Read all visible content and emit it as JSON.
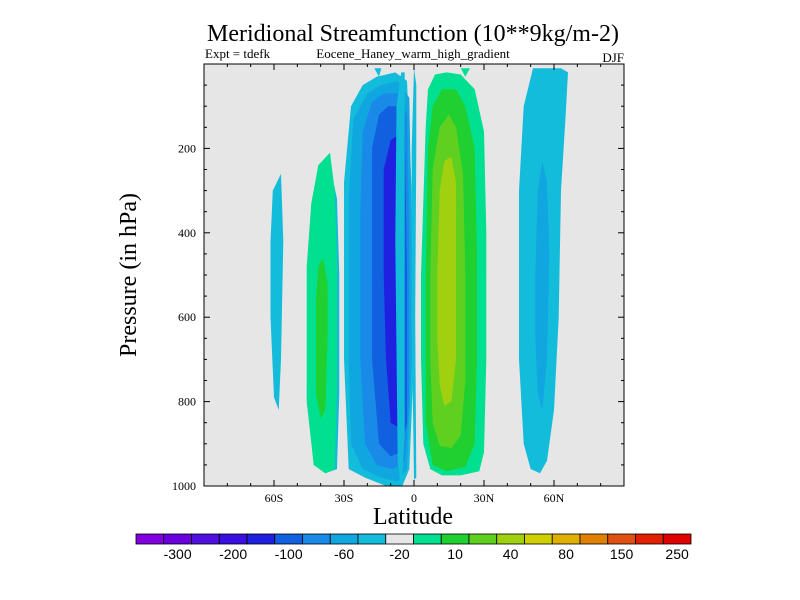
{
  "chart_data": {
    "type": "contour",
    "title": "Meridional Streamfunction (10**9kg/m-2)",
    "left_label": "Expt = tdefk",
    "center_label": "Eocene_Haney_warm_high_gradient",
    "right_label": "DJF",
    "xlabel": "Latitude",
    "ylabel": "Pressure (in hPa)",
    "xlim": [
      -90,
      90
    ],
    "ylim": [
      1000,
      0
    ],
    "x_ticks": [
      {
        "value": -60,
        "label": "60S"
      },
      {
        "value": -30,
        "label": "30S"
      },
      {
        "value": 0,
        "label": "0"
      },
      {
        "value": 30,
        "label": "30N"
      },
      {
        "value": 60,
        "label": "60N"
      }
    ],
    "y_ticks": [
      {
        "value": 200,
        "label": "200"
      },
      {
        "value": 400,
        "label": "400"
      },
      {
        "value": 600,
        "label": "600"
      },
      {
        "value": 800,
        "label": "800"
      },
      {
        "value": 1000,
        "label": "1000"
      }
    ],
    "missing_color": "#e6e6e6",
    "colorbar": {
      "colors": [
        "#8000e0",
        "#6a00e0",
        "#5010e0",
        "#3a10e0",
        "#2020e0",
        "#1060e0",
        "#1a8ae8",
        "#10a6e0",
        "#14bcdc",
        "#e6e6e6",
        "#00e090",
        "#20d030",
        "#60d020",
        "#a0d010",
        "#d0d000",
        "#e0b000",
        "#e08000",
        "#e05010",
        "#e02000",
        "#e00000"
      ],
      "labels": [
        {
          "after_index": 1,
          "text": "-300"
        },
        {
          "after_index": 3,
          "text": "-200"
        },
        {
          "after_index": 5,
          "text": "-100"
        },
        {
          "after_index": 7,
          "text": "-60"
        },
        {
          "after_index": 9,
          "text": "-20"
        },
        {
          "after_index": 11,
          "text": "10"
        },
        {
          "after_index": 13,
          "text": "40"
        },
        {
          "after_index": 15,
          "text": "80"
        },
        {
          "after_index": 17,
          "text": "150"
        },
        {
          "after_index": 19,
          "text": "250"
        }
      ]
    },
    "regions": [
      {
        "color": "#14bcdc",
        "poly": [
          [
            -60.5,
            300
          ],
          [
            -57,
            260
          ],
          [
            -56,
            420
          ],
          [
            -57,
            700
          ],
          [
            -58,
            820
          ],
          [
            -60,
            790
          ],
          [
            -61.5,
            600
          ],
          [
            -61.5,
            420
          ]
        ]
      },
      {
        "color": "#14bcdc",
        "poly": [
          [
            -44,
            420
          ],
          [
            -40,
            330
          ],
          [
            -36,
            240
          ],
          [
            -33,
            320
          ],
          [
            -32,
            500
          ],
          [
            -32,
            780
          ],
          [
            -33,
            960
          ],
          [
            -38,
            970
          ],
          [
            -43,
            950
          ],
          [
            -45,
            750
          ]
        ]
      },
      {
        "color": "#00e090",
        "poly": [
          [
            -46,
            480
          ],
          [
            -44,
            330
          ],
          [
            -41,
            240
          ],
          [
            -36,
            210
          ],
          [
            -34,
            300
          ],
          [
            -33,
            480
          ],
          [
            -33,
            760
          ],
          [
            -34,
            960
          ],
          [
            -38,
            970
          ],
          [
            -43,
            950
          ],
          [
            -46,
            800
          ]
        ]
      },
      {
        "color": "#20d030",
        "poly": [
          [
            -42,
            560
          ],
          [
            -41,
            480
          ],
          [
            -39,
            460
          ],
          [
            -37,
            520
          ],
          [
            -37,
            640
          ],
          [
            -38,
            820
          ],
          [
            -40,
            840
          ],
          [
            -42,
            780
          ]
        ]
      },
      {
        "color": "#14bcdc",
        "poly": [
          [
            -30,
            280
          ],
          [
            -27,
            100
          ],
          [
            -22,
            50
          ],
          [
            -16,
            30
          ],
          [
            -8,
            20
          ],
          [
            -3,
            40
          ],
          [
            -1,
            300
          ],
          [
            0,
            700
          ],
          [
            -2,
            960
          ],
          [
            -5,
            1000
          ],
          [
            -12,
            1000
          ],
          [
            -21,
            980
          ],
          [
            -28,
            960
          ],
          [
            -30,
            700
          ]
        ]
      },
      {
        "color": "#10a6e0",
        "poly": [
          [
            -28,
            320
          ],
          [
            -26,
            130
          ],
          [
            -20,
            70
          ],
          [
            -14,
            50
          ],
          [
            -7,
            40
          ],
          [
            -2,
            80
          ],
          [
            -1,
            400
          ],
          [
            -1,
            700
          ],
          [
            -3,
            960
          ],
          [
            -7,
            990
          ],
          [
            -14,
            980
          ],
          [
            -22,
            960
          ],
          [
            -27,
            900
          ],
          [
            -28,
            700
          ]
        ]
      },
      {
        "color": "#1a8ae8",
        "poly": [
          [
            -23,
            350
          ],
          [
            -22,
            160
          ],
          [
            -18,
            90
          ],
          [
            -13,
            70
          ],
          [
            -7,
            70
          ],
          [
            -3,
            120
          ],
          [
            -2,
            400
          ],
          [
            -2,
            800
          ],
          [
            -4,
            940
          ],
          [
            -9,
            960
          ],
          [
            -16,
            950
          ],
          [
            -21,
            900
          ],
          [
            -23,
            700
          ]
        ]
      },
      {
        "color": "#1060e0",
        "poly": [
          [
            -18,
            420
          ],
          [
            -18,
            200
          ],
          [
            -15,
            120
          ],
          [
            -11,
            100
          ],
          [
            -7,
            100
          ],
          [
            -4,
            140
          ],
          [
            -3,
            500
          ],
          [
            -3,
            850
          ],
          [
            -6,
            920
          ],
          [
            -10,
            930
          ],
          [
            -15,
            900
          ],
          [
            -18,
            700
          ]
        ]
      },
      {
        "color": "#2020e0",
        "poly": [
          [
            -13,
            500
          ],
          [
            -13,
            250
          ],
          [
            -10,
            180
          ],
          [
            -7,
            170
          ],
          [
            -5,
            200
          ],
          [
            -4,
            500
          ],
          [
            -4,
            800
          ],
          [
            -7,
            860
          ],
          [
            -10,
            850
          ],
          [
            -12,
            700
          ]
        ]
      },
      {
        "color": "#3a10e0",
        "poly": [
          [
            -7,
            450
          ],
          [
            -7,
            340
          ],
          [
            -6,
            320
          ],
          [
            -5,
            350
          ],
          [
            -5,
            700
          ],
          [
            -6,
            790
          ],
          [
            -7,
            780
          ],
          [
            -7.5,
            650
          ]
        ]
      },
      {
        "color": "#00e090",
        "poly": [
          [
            3,
            500
          ],
          [
            5,
            150
          ],
          [
            6,
            60
          ],
          [
            9,
            25
          ],
          [
            14,
            20
          ],
          [
            20,
            25
          ],
          [
            26,
            60
          ],
          [
            30,
            160
          ],
          [
            31,
            400
          ],
          [
            31,
            700
          ],
          [
            30,
            920
          ],
          [
            28,
            965
          ],
          [
            20,
            975
          ],
          [
            12,
            975
          ],
          [
            7,
            960
          ],
          [
            4,
            900
          ],
          [
            3,
            700
          ]
        ]
      },
      {
        "color": "#20d030",
        "poly": [
          [
            5,
            500
          ],
          [
            6,
            200
          ],
          [
            8,
            100
          ],
          [
            12,
            60
          ],
          [
            18,
            60
          ],
          [
            22,
            100
          ],
          [
            26,
            200
          ],
          [
            27,
            450
          ],
          [
            27,
            700
          ],
          [
            26,
            900
          ],
          [
            22,
            955
          ],
          [
            14,
            965
          ],
          [
            8,
            950
          ],
          [
            5,
            850
          ]
        ]
      },
      {
        "color": "#60d020",
        "poly": [
          [
            7,
            500
          ],
          [
            8,
            250
          ],
          [
            11,
            150
          ],
          [
            15,
            120
          ],
          [
            18,
            150
          ],
          [
            21,
            260
          ],
          [
            22,
            500
          ],
          [
            22,
            750
          ],
          [
            20,
            880
          ],
          [
            16,
            910
          ],
          [
            11,
            905
          ],
          [
            8,
            850
          ],
          [
            7,
            700
          ]
        ]
      },
      {
        "color": "#a0d010",
        "poly": [
          [
            10,
            500
          ],
          [
            11,
            300
          ],
          [
            13,
            230
          ],
          [
            16,
            220
          ],
          [
            18,
            280
          ],
          [
            18,
            500
          ],
          [
            18,
            700
          ],
          [
            16,
            800
          ],
          [
            13,
            810
          ],
          [
            11,
            760
          ],
          [
            10,
            650
          ]
        ]
      },
      {
        "color": "#14bcdc",
        "poly": [
          [
            -8,
            420
          ],
          [
            -7.5,
            100
          ],
          [
            -5.5,
            20
          ],
          [
            -4,
            20
          ],
          [
            -4,
            200
          ],
          [
            -4,
            600
          ],
          [
            -4,
            880
          ],
          [
            -5,
            980
          ],
          [
            -6,
            990
          ],
          [
            -7,
            940
          ]
        ]
      },
      {
        "color": "#14bcdc",
        "poly": [
          [
            0,
            10
          ],
          [
            1,
            50
          ],
          [
            1,
            200
          ],
          [
            0.5,
            600
          ],
          [
            1,
            980
          ],
          [
            0,
            985
          ],
          [
            -1,
            600
          ],
          [
            -1,
            200
          ]
        ]
      },
      {
        "color": "#14bcdc",
        "poly": [
          [
            45,
            300
          ],
          [
            47,
            100
          ],
          [
            51,
            10
          ],
          [
            56,
            10
          ],
          [
            63,
            10
          ],
          [
            66,
            20
          ],
          [
            65,
            120
          ],
          [
            63,
            300
          ],
          [
            62,
            600
          ],
          [
            60,
            820
          ],
          [
            57,
            940
          ],
          [
            54,
            970
          ],
          [
            50,
            960
          ],
          [
            47,
            900
          ],
          [
            45,
            700
          ]
        ]
      },
      {
        "color": "#10a6e0",
        "poly": [
          [
            52,
            500
          ],
          [
            53,
            300
          ],
          [
            55,
            230
          ],
          [
            57,
            280
          ],
          [
            58,
            450
          ],
          [
            57,
            700
          ],
          [
            55,
            820
          ],
          [
            53,
            780
          ],
          [
            52,
            650
          ]
        ]
      },
      {
        "color": "#14bcdc",
        "poly": [
          [
            -17,
            10
          ],
          [
            -15,
            30
          ],
          [
            -14,
            10
          ]
        ]
      },
      {
        "color": "#00e090",
        "poly": [
          [
            20,
            10
          ],
          [
            22,
            30
          ],
          [
            24,
            10
          ]
        ]
      }
    ]
  }
}
